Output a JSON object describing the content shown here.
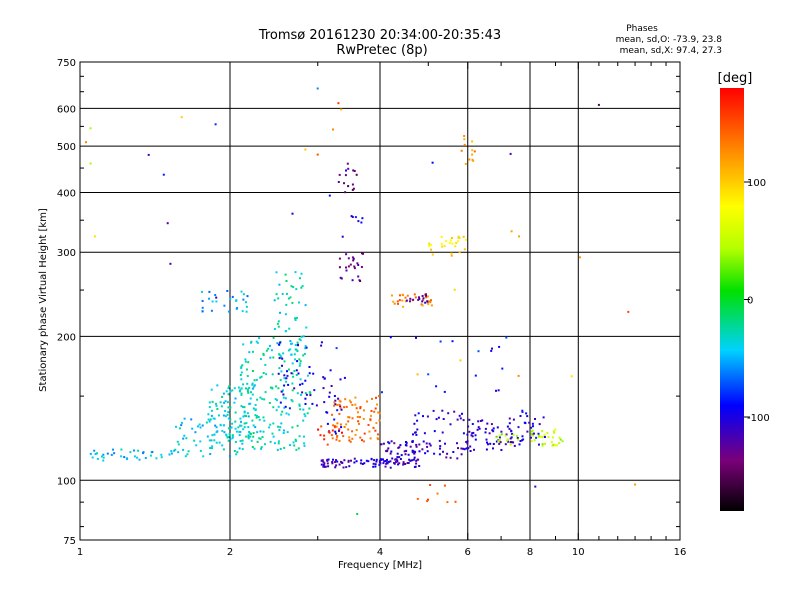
{
  "chart_data": {
    "type": "scatter",
    "title": "Tromsø 20161230 20:34:00-20:35:43",
    "subtitle": "RwPretec (8p)",
    "stats": {
      "heading": "Phases",
      "line_o": "mean, sd,O: -73.9, 23.8",
      "line_x": "mean, sd,X:  97.4, 27.3"
    },
    "xlabel": "Frequency [MHz]",
    "ylabel": "Stationary phase Virtual Height [km]",
    "xscale": "log",
    "yscale": "log",
    "xlim": [
      1,
      16
    ],
    "ylim": [
      75,
      750
    ],
    "xticks": [
      1,
      2,
      4,
      6,
      8,
      10,
      16
    ],
    "xtick_labels": [
      "1",
      "2",
      "4",
      "6",
      "8",
      "10",
      "16"
    ],
    "xgrid": [
      2,
      4,
      6,
      8,
      10
    ],
    "yticks": [
      75,
      100,
      200,
      300,
      400,
      500,
      600,
      750
    ],
    "ytick_labels": [
      "75",
      "100",
      "200",
      "300",
      "400",
      "500",
      "600",
      "750"
    ],
    "ygrid": [
      100,
      200,
      300,
      400,
      500,
      600
    ],
    "grid": true,
    "colorbar": {
      "label": "[deg]",
      "range": [
        -180,
        180
      ],
      "ticks": [
        100,
        0,
        -100
      ],
      "tick_labels": [
        "100",
        "0",
        "-100"
      ]
    },
    "point_groups": [
      {
        "f": [
          1.05,
          1.55
        ],
        "h": [
          110,
          116
        ],
        "phase": -45,
        "n": 38
      },
      {
        "f": [
          1.55,
          2.1
        ],
        "h": [
          112,
          135
        ],
        "phase": -40,
        "n": 70
      },
      {
        "f": [
          1.8,
          2.25
        ],
        "h": [
          120,
          160
        ],
        "phase": -35,
        "n": 90
      },
      {
        "f": [
          2.1,
          2.9
        ],
        "h": [
          115,
          200
        ],
        "phase": -30,
        "n": 200
      },
      {
        "f": [
          2.45,
          2.85
        ],
        "h": [
          180,
          275
        ],
        "phase": -32,
        "n": 50
      },
      {
        "f": [
          1.75,
          2.2
        ],
        "h": [
          225,
          250
        ],
        "phase": -50,
        "n": 28
      },
      {
        "f": [
          2.5,
          3.05
        ],
        "h": [
          140,
          195
        ],
        "phase": -100,
        "n": 40
      },
      {
        "f": [
          3.05,
          3.35
        ],
        "h": [
          125,
          165
        ],
        "phase": -105,
        "n": 25
      },
      {
        "f": [
          3.05,
          4.8
        ],
        "h": [
          106,
          111
        ],
        "phase": -110,
        "n": 95
      },
      {
        "f": [
          4.0,
          6.0
        ],
        "h": [
          110,
          121
        ],
        "phase": -112,
        "n": 80
      },
      {
        "f": [
          6.0,
          7.5
        ],
        "h": [
          115,
          135
        ],
        "phase": -108,
        "n": 60
      },
      {
        "f": [
          7.5,
          8.6
        ],
        "h": [
          118,
          140
        ],
        "phase": -100,
        "n": 30
      },
      {
        "f": [
          4.6,
          6.2
        ],
        "h": [
          123,
          140
        ],
        "phase": -105,
        "n": 30
      },
      {
        "f": [
          3.2,
          4.0
        ],
        "h": [
          120,
          150
        ],
        "phase": 140,
        "n": 80
      },
      {
        "f": [
          3.0,
          3.4
        ],
        "h": [
          118,
          130
        ],
        "phase": 160,
        "n": 12
      },
      {
        "f": [
          8.0,
          9.4
        ],
        "h": [
          118,
          128
        ],
        "phase": 50,
        "n": 30
      },
      {
        "f": [
          6.8,
          7.6
        ],
        "h": [
          118,
          125
        ],
        "phase": 40,
        "n": 14
      },
      {
        "f": [
          5.0,
          6.0
        ],
        "h": [
          295,
          325
        ],
        "phase": 95,
        "n": 26
      },
      {
        "f": [
          4.2,
          5.1
        ],
        "h": [
          230,
          245
        ],
        "phase": 130,
        "n": 30
      },
      {
        "f": [
          4.5,
          5.0
        ],
        "h": [
          235,
          245
        ],
        "phase": -115,
        "n": 14
      },
      {
        "f": [
          3.3,
          3.7
        ],
        "h": [
          260,
          300
        ],
        "phase": -130,
        "n": 24
      },
      {
        "f": [
          3.3,
          3.6
        ],
        "h": [
          400,
          460
        ],
        "phase": -140,
        "n": 14
      },
      {
        "f": [
          3.4,
          3.7
        ],
        "h": [
          340,
          360
        ],
        "phase": -100,
        "n": 6
      },
      {
        "f": [
          3.0,
          7.5
        ],
        "h": [
          150,
          200
        ],
        "phase": -90,
        "n": 20
      },
      {
        "f": [
          5.8,
          6.2
        ],
        "h": [
          450,
          530
        ],
        "phase": 120,
        "n": 12
      },
      {
        "f": [
          4.5,
          5.8
        ],
        "h": [
          90,
          98
        ],
        "phase": 140,
        "n": 8
      },
      {
        "f": [
          1.0,
          10.5
        ],
        "h": [
          160,
          600
        ],
        "phase": 110,
        "n": 12
      },
      {
        "f": [
          1.0,
          10.5
        ],
        "h": [
          160,
          600
        ],
        "phase": -100,
        "n": 12
      }
    ],
    "isolated_points": [
      {
        "f": 11.0,
        "h": 610,
        "phase": -150
      },
      {
        "f": 12.6,
        "h": 225,
        "phase": 155
      },
      {
        "f": 13.0,
        "h": 98,
        "phase": 120
      },
      {
        "f": 1.6,
        "h": 575,
        "phase": 100
      },
      {
        "f": 1.05,
        "h": 545,
        "phase": 40
      },
      {
        "f": 1.05,
        "h": 460,
        "phase": 40
      },
      {
        "f": 3.0,
        "h": 660,
        "phase": -60
      },
      {
        "f": 3.3,
        "h": 615,
        "phase": 160
      },
      {
        "f": 3.6,
        "h": 85,
        "phase": -10
      },
      {
        "f": 8.2,
        "h": 97,
        "phase": -110
      },
      {
        "f": 1.5,
        "h": 345,
        "phase": -120
      },
      {
        "f": 3.0,
        "h": 480,
        "phase": 150
      },
      {
        "f": 9.7,
        "h": 165,
        "phase": 90
      }
    ]
  }
}
